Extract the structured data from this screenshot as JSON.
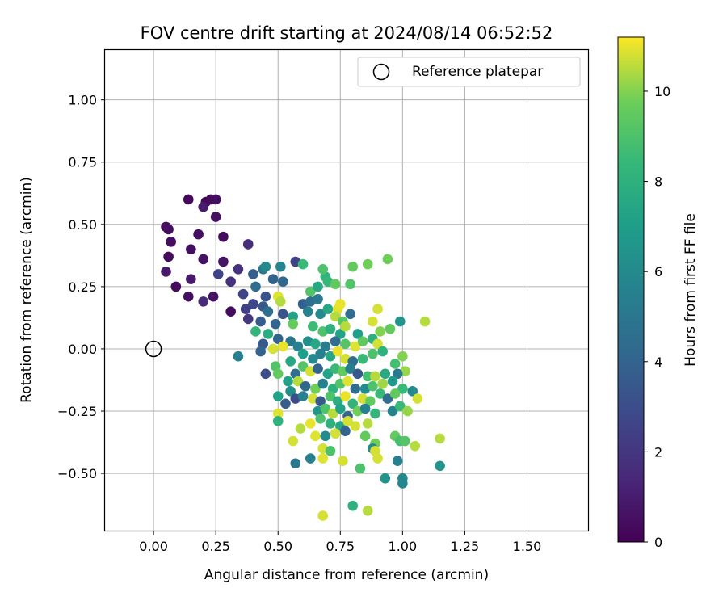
{
  "chart_data": {
    "type": "scatter",
    "title": "FOV centre drift starting at 2024/08/14 06:52:52",
    "xlabel": "Angular distance from reference (arcmin)",
    "ylabel": "Rotation from reference (arcmin)",
    "xlim": [
      -0.195,
      1.745
    ],
    "ylim": [
      -0.73,
      1.2
    ],
    "x_ticks": [
      "0.00",
      "0.25",
      "0.50",
      "0.75",
      "1.00",
      "1.25",
      "1.50"
    ],
    "x_tick_values": [
      0,
      0.25,
      0.5,
      0.75,
      1.0,
      1.25,
      1.5
    ],
    "y_ticks": [
      "−0.50",
      "−0.25",
      "0.00",
      "0.25",
      "0.50",
      "0.75",
      "1.00"
    ],
    "y_tick_values": [
      -0.5,
      -0.25,
      0,
      0.25,
      0.5,
      0.75,
      1.0
    ],
    "grid": true,
    "legend": {
      "position": "top-right",
      "entries": [
        "Reference platepar"
      ]
    },
    "reference_point": {
      "x": 0.0,
      "y": 0.0,
      "label": "Reference platepar"
    },
    "colorbar": {
      "label": "Hours from first FF file",
      "min": 0,
      "max": 11.2,
      "ticks": [
        "0",
        "2",
        "4",
        "6",
        "8",
        "10"
      ],
      "tick_values": [
        0,
        2,
        4,
        6,
        8,
        10
      ],
      "colormap": "viridis"
    },
    "series": [
      {
        "points": [
          [
            0.14,
            0.6,
            0.2
          ],
          [
            0.21,
            0.59,
            0.3
          ],
          [
            0.23,
            0.6,
            0.4
          ],
          [
            0.25,
            0.6,
            0.5
          ],
          [
            0.2,
            0.57,
            0.9
          ],
          [
            0.25,
            0.53,
            0.5
          ],
          [
            0.05,
            0.49,
            0.4
          ],
          [
            0.06,
            0.48,
            0.5
          ],
          [
            0.18,
            0.46,
            0.5
          ],
          [
            0.28,
            0.45,
            0.4
          ],
          [
            0.07,
            0.43,
            0.5
          ],
          [
            0.15,
            0.4,
            0.5
          ],
          [
            0.38,
            0.42,
            1.6
          ],
          [
            0.06,
            0.37,
            0.4
          ],
          [
            0.2,
            0.36,
            0.6
          ],
          [
            0.28,
            0.35,
            0.7
          ],
          [
            0.34,
            0.32,
            1.8
          ],
          [
            0.05,
            0.31,
            0.9
          ],
          [
            0.26,
            0.3,
            2.6
          ],
          [
            0.15,
            0.28,
            0.9
          ],
          [
            0.31,
            0.27,
            1.8
          ],
          [
            0.09,
            0.25,
            0.4
          ],
          [
            0.14,
            0.21,
            0.5
          ],
          [
            0.24,
            0.21,
            0.6
          ],
          [
            0.2,
            0.19,
            1.5
          ],
          [
            0.31,
            0.15,
            0.4
          ],
          [
            0.4,
            0.3,
            3.8
          ],
          [
            0.44,
            0.32,
            5.0
          ],
          [
            0.45,
            0.33,
            6.0
          ],
          [
            0.51,
            0.33,
            5.8
          ],
          [
            0.57,
            0.35,
            2.5
          ],
          [
            0.48,
            0.28,
            4.0
          ],
          [
            0.52,
            0.27,
            4.2
          ],
          [
            0.41,
            0.25,
            4.5
          ],
          [
            0.36,
            0.22,
            2.6
          ],
          [
            0.45,
            0.21,
            3.3
          ],
          [
            0.5,
            0.21,
            10.9
          ],
          [
            0.51,
            0.19,
            10.5
          ],
          [
            0.4,
            0.18,
            2.8
          ],
          [
            0.44,
            0.17,
            3.5
          ],
          [
            0.37,
            0.16,
            2.4
          ],
          [
            0.46,
            0.15,
            4.6
          ],
          [
            0.52,
            0.14,
            3.3
          ],
          [
            0.56,
            0.13,
            7.2
          ],
          [
            0.38,
            0.12,
            2.0
          ],
          [
            0.43,
            0.11,
            3.6
          ],
          [
            0.49,
            0.1,
            4.0
          ],
          [
            0.56,
            0.1,
            9.6
          ],
          [
            0.41,
            0.07,
            8.2
          ],
          [
            0.46,
            0.06,
            7.8
          ],
          [
            0.5,
            0.04,
            4.1
          ],
          [
            0.55,
            0.03,
            5.0
          ],
          [
            0.44,
            0.02,
            3.5
          ],
          [
            0.48,
            0.0,
            10.8
          ],
          [
            0.52,
            0.01,
            11.0
          ],
          [
            0.58,
            0.01,
            5.5
          ],
          [
            0.43,
            -0.01,
            4.0
          ],
          [
            0.34,
            -0.03,
            5.5
          ],
          [
            0.55,
            -0.05,
            7.5
          ],
          [
            0.49,
            -0.07,
            9.1
          ],
          [
            0.45,
            -0.1,
            3.0
          ],
          [
            0.5,
            -0.1,
            9.5
          ],
          [
            0.57,
            -0.1,
            4.5
          ],
          [
            0.54,
            -0.13,
            7.2
          ],
          [
            0.55,
            -0.17,
            6.2
          ],
          [
            0.5,
            -0.19,
            7.2
          ],
          [
            0.57,
            -0.2,
            3.0
          ],
          [
            0.53,
            -0.22,
            3.7
          ],
          [
            0.5,
            -0.26,
            10.9
          ],
          [
            0.5,
            -0.29,
            8.0
          ],
          [
            0.56,
            -0.37,
            10.8
          ],
          [
            0.57,
            -0.46,
            5.0
          ],
          [
            0.6,
            0.34,
            8.5
          ],
          [
            0.63,
            0.23,
            9.1
          ],
          [
            0.66,
            0.25,
            7.5
          ],
          [
            0.69,
            0.29,
            8.2
          ],
          [
            0.7,
            0.27,
            8.4
          ],
          [
            0.73,
            0.26,
            9.5
          ],
          [
            0.68,
            0.32,
            9.0
          ],
          [
            0.79,
            0.26,
            9.1
          ],
          [
            0.8,
            0.33,
            9.5
          ],
          [
            0.86,
            0.34,
            9.8
          ],
          [
            0.94,
            0.36,
            9.8
          ],
          [
            0.6,
            0.18,
            3.8
          ],
          [
            0.63,
            0.19,
            4.5
          ],
          [
            0.66,
            0.2,
            5.0
          ],
          [
            0.62,
            0.15,
            5.5
          ],
          [
            0.67,
            0.14,
            6.0
          ],
          [
            0.7,
            0.16,
            7.5
          ],
          [
            0.74,
            0.16,
            10.9
          ],
          [
            0.75,
            0.18,
            11.0
          ],
          [
            0.73,
            0.13,
            10.5
          ],
          [
            0.76,
            0.11,
            9.3
          ],
          [
            0.79,
            0.14,
            4.5
          ],
          [
            0.64,
            0.09,
            8.6
          ],
          [
            0.68,
            0.07,
            9.0
          ],
          [
            0.71,
            0.08,
            8.0
          ],
          [
            0.75,
            0.06,
            7.2
          ],
          [
            0.77,
            0.09,
            10.5
          ],
          [
            0.82,
            0.06,
            7.0
          ],
          [
            0.62,
            0.03,
            6.2
          ],
          [
            0.65,
            0.02,
            7.5
          ],
          [
            0.69,
            0.01,
            5.2
          ],
          [
            0.73,
            0.03,
            4.5
          ],
          [
            0.77,
            0.02,
            9.2
          ],
          [
            0.81,
            0.01,
            10.9
          ],
          [
            0.84,
            0.03,
            9.5
          ],
          [
            0.88,
            0.04,
            8.0
          ],
          [
            0.88,
            0.11,
            10.8
          ],
          [
            0.9,
            0.16,
            10.8
          ],
          [
            0.91,
            0.07,
            10.0
          ],
          [
            0.95,
            0.08,
            9.5
          ],
          [
            0.99,
            0.11,
            6.5
          ],
          [
            1.09,
            0.11,
            10.5
          ],
          [
            0.6,
            -0.02,
            7.0
          ],
          [
            0.64,
            -0.04,
            6.0
          ],
          [
            0.67,
            -0.02,
            5.5
          ],
          [
            0.71,
            -0.03,
            7.5
          ],
          [
            0.74,
            -0.01,
            11.0
          ],
          [
            0.77,
            -0.04,
            10.8
          ],
          [
            0.8,
            -0.05,
            4.5
          ],
          [
            0.84,
            -0.04,
            8.5
          ],
          [
            0.88,
            -0.02,
            9.0
          ],
          [
            0.9,
            0.02,
            10.8
          ],
          [
            0.92,
            -0.01,
            8.0
          ],
          [
            0.6,
            -0.07,
            9.2
          ],
          [
            0.63,
            -0.09,
            10.8
          ],
          [
            0.66,
            -0.08,
            4.0
          ],
          [
            0.7,
            -0.1,
            7.2
          ],
          [
            0.73,
            -0.08,
            8.5
          ],
          [
            0.76,
            -0.09,
            9.5
          ],
          [
            0.79,
            -0.08,
            5.5
          ],
          [
            0.82,
            -0.1,
            3.5
          ],
          [
            0.86,
            -0.11,
            8.8
          ],
          [
            0.89,
            -0.11,
            10.5
          ],
          [
            0.93,
            -0.1,
            7.6
          ],
          [
            0.97,
            -0.06,
            8.8
          ],
          [
            1.0,
            -0.03,
            10.0
          ],
          [
            1.01,
            -0.09,
            10.2
          ],
          [
            0.98,
            -0.1,
            5.0
          ],
          [
            0.58,
            -0.13,
            10.5
          ],
          [
            0.61,
            -0.15,
            4.2
          ],
          [
            0.65,
            -0.16,
            9.8
          ],
          [
            0.68,
            -0.14,
            5.5
          ],
          [
            0.72,
            -0.16,
            8.0
          ],
          [
            0.75,
            -0.14,
            9.1
          ],
          [
            0.78,
            -0.13,
            10.9
          ],
          [
            0.81,
            -0.16,
            4.5
          ],
          [
            0.85,
            -0.16,
            6.0
          ],
          [
            0.88,
            -0.15,
            9.0
          ],
          [
            0.92,
            -0.14,
            10.3
          ],
          [
            0.96,
            -0.13,
            6.8
          ],
          [
            1.0,
            -0.16,
            8.5
          ],
          [
            1.04,
            -0.17,
            6.0
          ],
          [
            0.6,
            -0.19,
            5.5
          ],
          [
            0.64,
            -0.2,
            10.8
          ],
          [
            0.67,
            -0.21,
            3.5
          ],
          [
            0.71,
            -0.19,
            9.0
          ],
          [
            0.74,
            -0.21,
            7.8
          ],
          [
            0.77,
            -0.19,
            11.0
          ],
          [
            0.8,
            -0.22,
            8.2
          ],
          [
            0.84,
            -0.2,
            10.8
          ],
          [
            0.87,
            -0.21,
            9.5
          ],
          [
            0.91,
            -0.18,
            8.5
          ],
          [
            0.94,
            -0.2,
            4.5
          ],
          [
            0.97,
            -0.18,
            9.5
          ],
          [
            1.06,
            -0.2,
            10.8
          ],
          [
            0.66,
            -0.25,
            6.5
          ],
          [
            0.69,
            -0.24,
            9.0
          ],
          [
            0.72,
            -0.26,
            10.5
          ],
          [
            0.75,
            -0.24,
            7.2
          ],
          [
            0.78,
            -0.27,
            4.0
          ],
          [
            0.82,
            -0.25,
            9.8
          ],
          [
            0.85,
            -0.24,
            5.5
          ],
          [
            0.89,
            -0.26,
            8.3
          ],
          [
            0.96,
            -0.25,
            5.6
          ],
          [
            0.99,
            -0.23,
            8.5
          ],
          [
            1.02,
            -0.25,
            10.2
          ],
          [
            0.63,
            -0.3,
            11.0
          ],
          [
            0.67,
            -0.28,
            9.0
          ],
          [
            0.71,
            -0.3,
            8.0
          ],
          [
            0.75,
            -0.31,
            7.5
          ],
          [
            0.78,
            -0.29,
            10.8
          ],
          [
            0.81,
            -0.31,
            10.8
          ],
          [
            0.86,
            -0.3,
            10.5
          ],
          [
            0.59,
            -0.32,
            10.5
          ],
          [
            0.65,
            -0.35,
            10.9
          ],
          [
            0.69,
            -0.35,
            6.0
          ],
          [
            0.73,
            -0.34,
            10.8
          ],
          [
            0.77,
            -0.33,
            4.0
          ],
          [
            0.85,
            -0.35,
            9.5
          ],
          [
            0.89,
            -0.38,
            9.8
          ],
          [
            0.97,
            -0.35,
            9.5
          ],
          [
            0.99,
            -0.37,
            8.8
          ],
          [
            1.01,
            -0.37,
            9.2
          ],
          [
            1.05,
            -0.39,
            10.5
          ],
          [
            1.15,
            -0.36,
            10.5
          ],
          [
            0.68,
            -0.4,
            10.8
          ],
          [
            0.71,
            -0.41,
            9.0
          ],
          [
            0.88,
            -0.4,
            6.0
          ],
          [
            0.89,
            -0.41,
            10.8
          ],
          [
            0.68,
            -0.44,
            10.9
          ],
          [
            0.63,
            -0.44,
            5.5
          ],
          [
            0.76,
            -0.45,
            10.8
          ],
          [
            0.9,
            -0.44,
            10.8
          ],
          [
            0.98,
            -0.45,
            5.5
          ],
          [
            0.83,
            -0.48,
            9.0
          ],
          [
            0.93,
            -0.52,
            6.5
          ],
          [
            1.0,
            -0.52,
            6.0
          ],
          [
            1.0,
            -0.54,
            5.8
          ],
          [
            1.15,
            -0.47,
            6.5
          ],
          [
            0.8,
            -0.63,
            8.0
          ],
          [
            0.86,
            -0.65,
            10.5
          ],
          [
            0.68,
            -0.67,
            10.8
          ]
        ]
      }
    ]
  }
}
